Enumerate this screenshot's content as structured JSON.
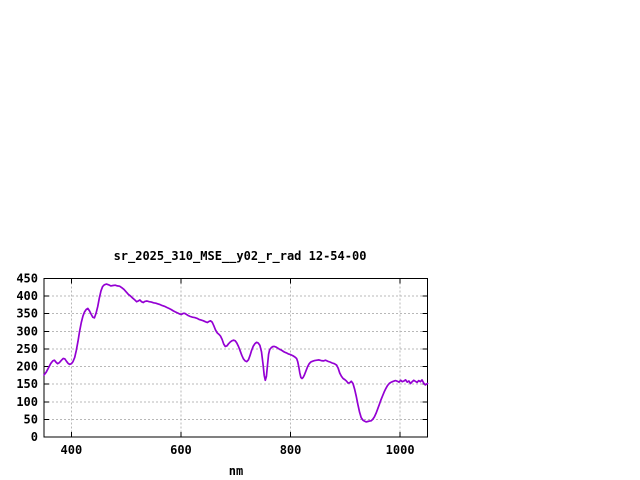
{
  "window": {
    "background_color": "#ffffff"
  },
  "chart_data": {
    "type": "line",
    "title": "sr_2025_310_MSE__y02_r_rad 12-54-00",
    "xlabel": "nm",
    "ylabel": "",
    "xlim": [
      350,
      1050
    ],
    "ylim": [
      0,
      450
    ],
    "xticks": [
      400,
      600,
      800,
      1000
    ],
    "yticks": [
      0,
      50,
      100,
      150,
      200,
      250,
      300,
      350,
      400,
      450
    ],
    "grid": true,
    "grid_style": "dashed",
    "legend_position": "none",
    "line_color": "#9400d3",
    "grid_color": "#b8b8b8",
    "frame_color": "#000000",
    "series": [
      {
        "name": "sr_2025_310_MSE__y02_r_rad",
        "points": [
          [
            350,
            176
          ],
          [
            354,
            184
          ],
          [
            358,
            196
          ],
          [
            362,
            208
          ],
          [
            366,
            216
          ],
          [
            369,
            218
          ],
          [
            372,
            212
          ],
          [
            375,
            208
          ],
          [
            378,
            211
          ],
          [
            382,
            218
          ],
          [
            385,
            223
          ],
          [
            388,
            222
          ],
          [
            391,
            215
          ],
          [
            394,
            209
          ],
          [
            397,
            206
          ],
          [
            400,
            208
          ],
          [
            403,
            214
          ],
          [
            406,
            226
          ],
          [
            409,
            246
          ],
          [
            412,
            272
          ],
          [
            415,
            300
          ],
          [
            418,
            325
          ],
          [
            421,
            343
          ],
          [
            424,
            355
          ],
          [
            427,
            362
          ],
          [
            430,
            365
          ],
          [
            433,
            358
          ],
          [
            436,
            349
          ],
          [
            439,
            340
          ],
          [
            442,
            338
          ],
          [
            445,
            351
          ],
          [
            448,
            370
          ],
          [
            451,
            394
          ],
          [
            454,
            415
          ],
          [
            457,
            427
          ],
          [
            460,
            432
          ],
          [
            464,
            434
          ],
          [
            468,
            432
          ],
          [
            472,
            429
          ],
          [
            476,
            430
          ],
          [
            480,
            431
          ],
          [
            484,
            429
          ],
          [
            488,
            428
          ],
          [
            492,
            424
          ],
          [
            496,
            419
          ],
          [
            500,
            412
          ],
          [
            504,
            405
          ],
          [
            508,
            400
          ],
          [
            512,
            394
          ],
          [
            516,
            389
          ],
          [
            519,
            384
          ],
          [
            522,
            386
          ],
          [
            525,
            389
          ],
          [
            528,
            384
          ],
          [
            531,
            382
          ],
          [
            534,
            385
          ],
          [
            538,
            386
          ],
          [
            542,
            384
          ],
          [
            546,
            383
          ],
          [
            550,
            381
          ],
          [
            554,
            380
          ],
          [
            558,
            378
          ],
          [
            562,
            376
          ],
          [
            566,
            373
          ],
          [
            570,
            371
          ],
          [
            574,
            368
          ],
          [
            578,
            365
          ],
          [
            582,
            362
          ],
          [
            586,
            358
          ],
          [
            590,
            355
          ],
          [
            594,
            352
          ],
          [
            598,
            349
          ],
          [
            601,
            348
          ],
          [
            604,
            351
          ],
          [
            607,
            351
          ],
          [
            610,
            348
          ],
          [
            613,
            345
          ],
          [
            617,
            342
          ],
          [
            621,
            340
          ],
          [
            625,
            339
          ],
          [
            629,
            337
          ],
          [
            633,
            334
          ],
          [
            637,
            332
          ],
          [
            641,
            330
          ],
          [
            645,
            327
          ],
          [
            648,
            325
          ],
          [
            651,
            328
          ],
          [
            654,
            330
          ],
          [
            657,
            326
          ],
          [
            660,
            316
          ],
          [
            663,
            304
          ],
          [
            666,
            296
          ],
          [
            669,
            292
          ],
          [
            672,
            287
          ],
          [
            675,
            277
          ],
          [
            678,
            264
          ],
          [
            681,
            257
          ],
          [
            684,
            259
          ],
          [
            687,
            265
          ],
          [
            690,
            270
          ],
          [
            693,
            273
          ],
          [
            696,
            275
          ],
          [
            699,
            273
          ],
          [
            702,
            267
          ],
          [
            705,
            257
          ],
          [
            708,
            245
          ],
          [
            711,
            232
          ],
          [
            714,
            222
          ],
          [
            717,
            216
          ],
          [
            720,
            214
          ],
          [
            723,
            219
          ],
          [
            726,
            231
          ],
          [
            729,
            246
          ],
          [
            732,
            258
          ],
          [
            735,
            265
          ],
          [
            738,
            269
          ],
          [
            741,
            267
          ],
          [
            744,
            260
          ],
          [
            747,
            242
          ],
          [
            750,
            205
          ],
          [
            752,
            175
          ],
          [
            754,
            161
          ],
          [
            756,
            172
          ],
          [
            758,
            204
          ],
          [
            760,
            235
          ],
          [
            762,
            248
          ],
          [
            765,
            254
          ],
          [
            768,
            257
          ],
          [
            771,
            257
          ],
          [
            774,
            255
          ],
          [
            777,
            252
          ],
          [
            780,
            249
          ],
          [
            783,
            247
          ],
          [
            786,
            244
          ],
          [
            789,
            241
          ],
          [
            792,
            239
          ],
          [
            796,
            236
          ],
          [
            800,
            234
          ],
          [
            804,
            231
          ],
          [
            808,
            227
          ],
          [
            811,
            223
          ],
          [
            813,
            214
          ],
          [
            815,
            199
          ],
          [
            817,
            182
          ],
          [
            819,
            169
          ],
          [
            821,
            166
          ],
          [
            823,
            169
          ],
          [
            825,
            175
          ],
          [
            828,
            187
          ],
          [
            831,
            199
          ],
          [
            834,
            208
          ],
          [
            837,
            213
          ],
          [
            840,
            215
          ],
          [
            844,
            217
          ],
          [
            848,
            218
          ],
          [
            852,
            219
          ],
          [
            856,
            217
          ],
          [
            860,
            216
          ],
          [
            864,
            218
          ],
          [
            868,
            215
          ],
          [
            872,
            213
          ],
          [
            876,
            210
          ],
          [
            880,
            208
          ],
          [
            884,
            204
          ],
          [
            887,
            195
          ],
          [
            890,
            181
          ],
          [
            893,
            172
          ],
          [
            896,
            166
          ],
          [
            899,
            163
          ],
          [
            902,
            159
          ],
          [
            905,
            153
          ],
          [
            908,
            154
          ],
          [
            911,
            158
          ],
          [
            914,
            152
          ],
          [
            917,
            136
          ],
          [
            920,
            115
          ],
          [
            923,
            92
          ],
          [
            926,
            70
          ],
          [
            929,
            55
          ],
          [
            932,
            48
          ],
          [
            935,
            45
          ],
          [
            938,
            43
          ],
          [
            941,
            44
          ],
          [
            944,
            45
          ],
          [
            947,
            46
          ],
          [
            950,
            50
          ],
          [
            953,
            57
          ],
          [
            956,
            67
          ],
          [
            959,
            79
          ],
          [
            962,
            92
          ],
          [
            965,
            105
          ],
          [
            968,
            117
          ],
          [
            971,
            128
          ],
          [
            974,
            138
          ],
          [
            977,
            146
          ],
          [
            980,
            152
          ],
          [
            983,
            155
          ],
          [
            986,
            157
          ],
          [
            989,
            159
          ],
          [
            992,
            160
          ],
          [
            995,
            158
          ],
          [
            998,
            156
          ],
          [
            1001,
            161
          ],
          [
            1004,
            157
          ],
          [
            1007,
            159
          ],
          [
            1010,
            162
          ],
          [
            1013,
            156
          ],
          [
            1016,
            159
          ],
          [
            1019,
            152
          ],
          [
            1022,
            157
          ],
          [
            1025,
            161
          ],
          [
            1028,
            158
          ],
          [
            1031,
            155
          ],
          [
            1034,
            160
          ],
          [
            1037,
            157
          ],
          [
            1040,
            162
          ],
          [
            1043,
            153
          ],
          [
            1046,
            148
          ],
          [
            1050,
            152
          ]
        ]
      }
    ]
  }
}
